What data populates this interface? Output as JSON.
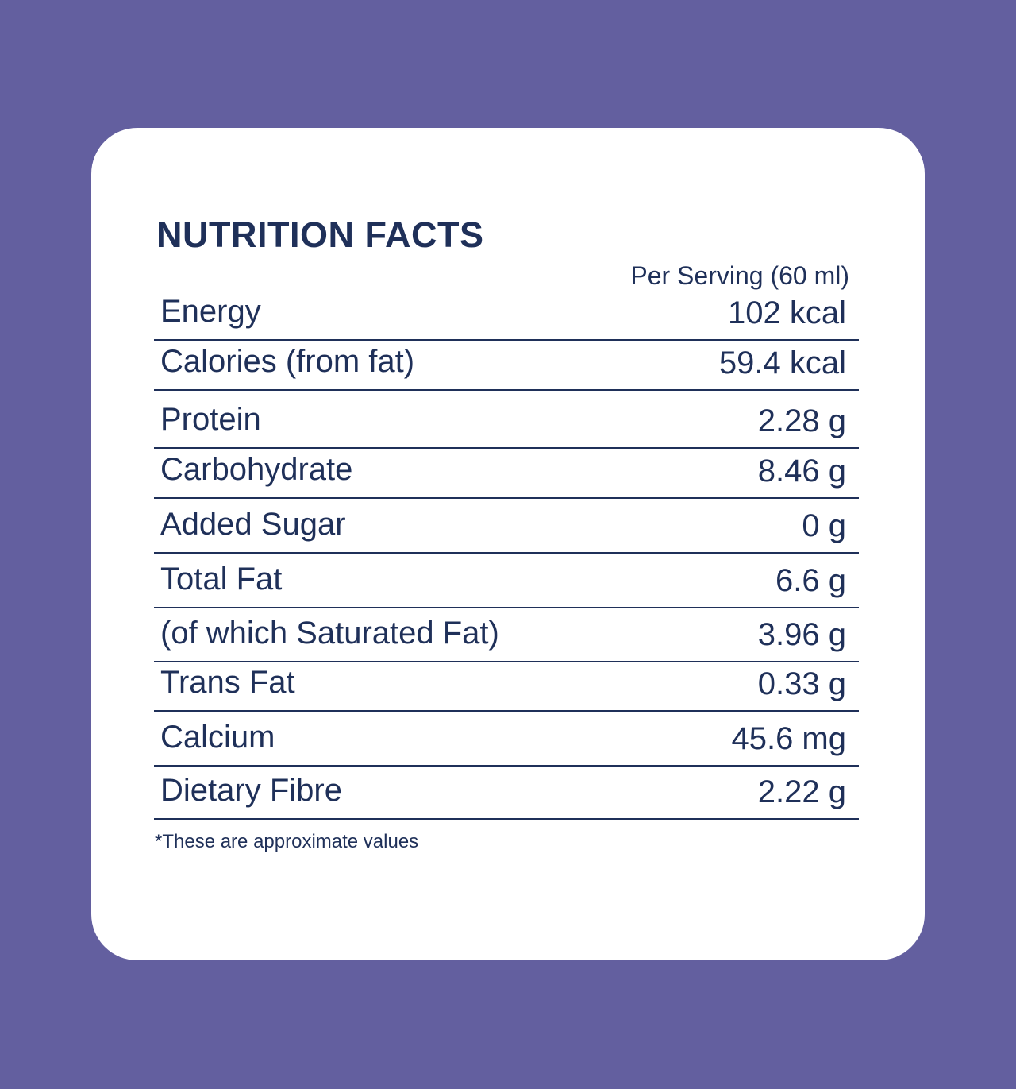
{
  "title": "NUTRITION FACTS",
  "serving_label": "Per Serving (60 ml)",
  "rows": [
    {
      "label": "Energy",
      "value": "102 kcal"
    },
    {
      "label": "Calories (from fat)",
      "value": "59.4 kcal"
    },
    {
      "label": "Protein",
      "value": "2.28 g"
    },
    {
      "label": "Carbohydrate",
      "value": "8.46 g"
    },
    {
      "label": "Added Sugar",
      "value": "0 g"
    },
    {
      "label": "Total Fat",
      "value": "6.6 g"
    },
    {
      "label": "(of which Saturated Fat)",
      "value": "3.96 g"
    },
    {
      "label": "Trans Fat",
      "value": "0.33 g"
    },
    {
      "label": "Calcium",
      "value": "45.6 mg"
    },
    {
      "label": "Dietary Fibre",
      "value": "2.22 g"
    }
  ],
  "footnote": "*These are approximate values",
  "colors": {
    "background": "#635f9f",
    "card": "#ffffff",
    "text": "#1f3059"
  }
}
